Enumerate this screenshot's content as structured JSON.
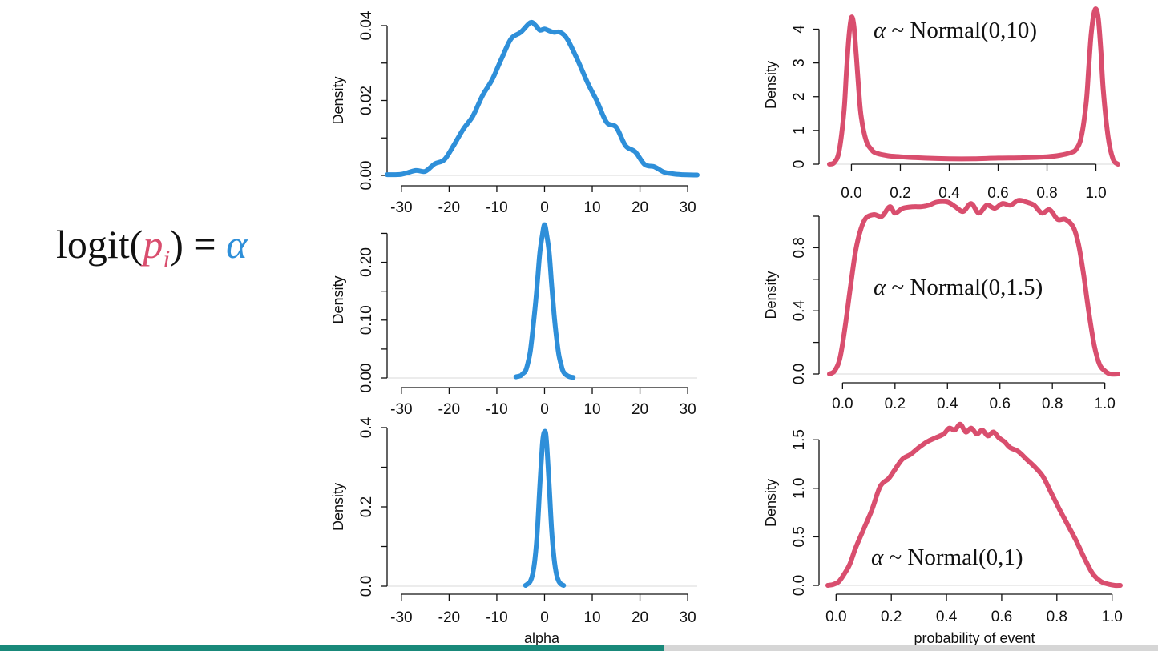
{
  "equation": {
    "text": "logit(",
    "p": "p",
    "sub": "i",
    "close": ") = ",
    "alpha": "α"
  },
  "colors": {
    "alpha_curve": "#2e8fd9",
    "prob_curve": "#d94e6e",
    "progress_fill": "#19897a",
    "progress_track": "#d6d6d6"
  },
  "progress": {
    "fraction": 0.573
  },
  "chart_data": [
    {
      "type": "line",
      "panel": "alpha-prior-sd10",
      "xlabel": "",
      "ylabel": "Density",
      "xlim": [
        -33,
        32
      ],
      "ylim": [
        0,
        0.04
      ],
      "xticks": [
        "-30",
        "-20",
        "-10",
        "0",
        "10",
        "20",
        "30"
      ],
      "xtick_values": [
        -30,
        -20,
        -10,
        0,
        10,
        20,
        30
      ],
      "yticks": [
        "0.00",
        "0.02",
        "0.04"
      ],
      "ytick_values": [
        0,
        0.02,
        0.04
      ],
      "minor_yticks": [
        0.01,
        0.03
      ],
      "color": "#2e8fd9",
      "x": [
        -33,
        -30,
        -27,
        -25,
        -23,
        -21,
        -19,
        -17,
        -15,
        -13,
        -11,
        -9,
        -7,
        -5,
        -3,
        -2,
        -1,
        0,
        1,
        2,
        3,
        4,
        5,
        7,
        9,
        11,
        13,
        15,
        17,
        19,
        21,
        23,
        25,
        27,
        29,
        32
      ],
      "y": [
        0.0002,
        0.0003,
        0.0013,
        0.0011,
        0.0031,
        0.0042,
        0.0081,
        0.0124,
        0.0159,
        0.0213,
        0.0255,
        0.0312,
        0.0365,
        0.0382,
        0.0408,
        0.0402,
        0.0388,
        0.0391,
        0.0386,
        0.0382,
        0.0383,
        0.0376,
        0.0359,
        0.0306,
        0.0248,
        0.0198,
        0.0142,
        0.0129,
        0.0079,
        0.0063,
        0.0029,
        0.0023,
        0.0009,
        0.0004,
        0.0002,
        0.0001
      ]
    },
    {
      "type": "line",
      "panel": "alpha-prior-sd1.5",
      "xlabel": "",
      "ylabel": "Density",
      "xlim": [
        -33,
        32
      ],
      "ylim": [
        0,
        0.27
      ],
      "xticks": [
        "-30",
        "-20",
        "-10",
        "0",
        "10",
        "20",
        "30"
      ],
      "xtick_values": [
        -30,
        -20,
        -10,
        0,
        10,
        20,
        30
      ],
      "yticks": [
        "0.00",
        "0.10",
        "0.20"
      ],
      "ytick_values": [
        0,
        0.1,
        0.2
      ],
      "minor_yticks": [
        0.05,
        0.15,
        0.25
      ],
      "color": "#2e8fd9",
      "x": [
        -6,
        -5,
        -4.5,
        -4,
        -3.5,
        -3,
        -2.5,
        -2,
        -1.5,
        -1,
        -0.5,
        0,
        0.5,
        1,
        1.5,
        2,
        2.5,
        3,
        3.5,
        4,
        5,
        6
      ],
      "y": [
        0.002,
        0.004,
        0.008,
        0.012,
        0.025,
        0.045,
        0.08,
        0.12,
        0.165,
        0.215,
        0.245,
        0.265,
        0.245,
        0.215,
        0.16,
        0.11,
        0.07,
        0.04,
        0.022,
        0.01,
        0.003,
        0.001
      ]
    },
    {
      "type": "line",
      "panel": "alpha-prior-sd1",
      "xlabel": "alpha",
      "ylabel": "Density",
      "xlim": [
        -33,
        32
      ],
      "ylim": [
        0,
        0.4
      ],
      "xticks": [
        "-30",
        "-20",
        "-10",
        "0",
        "10",
        "20",
        "30"
      ],
      "xtick_values": [
        -30,
        -20,
        -10,
        0,
        10,
        20,
        30
      ],
      "yticks": [
        "0.0",
        "0.2",
        "0.4"
      ],
      "ytick_values": [
        0,
        0.2,
        0.4
      ],
      "minor_yticks": [
        0.1,
        0.3
      ],
      "color": "#2e8fd9",
      "x": [
        -4,
        -3.5,
        -3,
        -2.5,
        -2,
        -1.5,
        -1,
        -0.5,
        -0.25,
        0,
        0.25,
        0.5,
        1,
        1.5,
        2,
        2.5,
        3,
        3.5,
        4
      ],
      "y": [
        0.002,
        0.006,
        0.012,
        0.03,
        0.07,
        0.14,
        0.25,
        0.35,
        0.38,
        0.39,
        0.385,
        0.35,
        0.25,
        0.14,
        0.07,
        0.03,
        0.012,
        0.005,
        0.002
      ]
    },
    {
      "type": "line",
      "panel": "prob-prior-sd10",
      "xlabel": "",
      "ylabel": "Density",
      "annotation": "α ~ Normal(0,10)",
      "annotation_alpha": "α",
      "annotation_rest": " ~ Normal(0,10)",
      "xlim": [
        -0.09,
        1.09
      ],
      "ylim": [
        0,
        4.7
      ],
      "xticks": [
        "0.0",
        "0.2",
        "0.4",
        "0.6",
        "0.8",
        "1.0"
      ],
      "xtick_values": [
        0,
        0.2,
        0.4,
        0.6,
        0.8,
        1.0
      ],
      "yticks": [
        "0",
        "1",
        "2",
        "3",
        "4"
      ],
      "ytick_values": [
        0,
        1,
        2,
        3,
        4
      ],
      "color": "#d94e6e",
      "x": [
        -0.09,
        -0.07,
        -0.05,
        -0.03,
        -0.02,
        -0.01,
        0.0,
        0.01,
        0.02,
        0.03,
        0.04,
        0.06,
        0.08,
        0.1,
        0.15,
        0.2,
        0.3,
        0.4,
        0.5,
        0.6,
        0.7,
        0.8,
        0.85,
        0.9,
        0.92,
        0.94,
        0.96,
        0.97,
        0.98,
        0.99,
        1.0,
        1.01,
        1.02,
        1.03,
        1.05,
        1.07,
        1.09
      ],
      "y": [
        0.0,
        0.05,
        0.4,
        1.6,
        2.8,
        3.8,
        4.35,
        4.1,
        3.2,
        2.2,
        1.4,
        0.7,
        0.45,
        0.33,
        0.25,
        0.22,
        0.18,
        0.16,
        0.16,
        0.18,
        0.19,
        0.22,
        0.26,
        0.35,
        0.45,
        0.8,
        1.8,
        2.8,
        3.8,
        4.4,
        4.6,
        4.3,
        3.4,
        2.2,
        0.8,
        0.15,
        0.0
      ]
    },
    {
      "type": "line",
      "panel": "prob-prior-sd1.5",
      "xlabel": "",
      "ylabel": "Density",
      "annotation": "α ~ Normal(0,1.5)",
      "annotation_alpha": "α",
      "annotation_rest": " ~ Normal(0,1.5)",
      "xlim": [
        -0.05,
        1.05
      ],
      "ylim": [
        0,
        1.0
      ],
      "xticks": [
        "0.0",
        "0.2",
        "0.4",
        "0.6",
        "0.8",
        "1.0"
      ],
      "xtick_values": [
        0,
        0.2,
        0.4,
        0.6,
        0.8,
        1.0
      ],
      "yticks": [
        "0.0",
        "0.4",
        "0.8"
      ],
      "ytick_values": [
        0,
        0.4,
        0.8
      ],
      "minor_yticks": [
        0.2,
        0.6,
        1.0
      ],
      "color": "#d94e6e",
      "x": [
        -0.05,
        -0.03,
        -0.01,
        0.01,
        0.03,
        0.05,
        0.07,
        0.09,
        0.12,
        0.15,
        0.18,
        0.2,
        0.23,
        0.27,
        0.3,
        0.33,
        0.36,
        0.4,
        0.43,
        0.46,
        0.49,
        0.52,
        0.55,
        0.58,
        0.61,
        0.64,
        0.67,
        0.7,
        0.73,
        0.76,
        0.79,
        0.82,
        0.85,
        0.88,
        0.9,
        0.92,
        0.94,
        0.96,
        0.98,
        1.0,
        1.02,
        1.05
      ],
      "y": [
        0.0,
        0.02,
        0.1,
        0.3,
        0.55,
        0.78,
        0.92,
        0.99,
        1.01,
        1.0,
        1.06,
        1.02,
        1.05,
        1.06,
        1.06,
        1.07,
        1.09,
        1.09,
        1.06,
        1.03,
        1.08,
        1.02,
        1.07,
        1.05,
        1.08,
        1.07,
        1.1,
        1.09,
        1.07,
        1.02,
        1.04,
        0.98,
        0.98,
        0.93,
        0.82,
        0.62,
        0.38,
        0.18,
        0.06,
        0.02,
        0.0,
        0.0
      ]
    },
    {
      "type": "line",
      "panel": "prob-prior-sd1",
      "xlabel": "probability of event",
      "ylabel": "Density",
      "annotation": "α ~ Normal(0,1)",
      "annotation_alpha": "α",
      "annotation_rest": " ~ Normal(0,1)",
      "xlim": [
        -0.03,
        1.03
      ],
      "ylim": [
        0,
        1.7
      ],
      "xticks": [
        "0.0",
        "0.2",
        "0.4",
        "0.6",
        "0.8",
        "1.0"
      ],
      "xtick_values": [
        0,
        0.2,
        0.4,
        0.6,
        0.8,
        1.0
      ],
      "yticks": [
        "0.0",
        "0.5",
        "1.0",
        "1.5"
      ],
      "ytick_values": [
        0,
        0.5,
        1.0,
        1.5
      ],
      "color": "#d94e6e",
      "x": [
        -0.03,
        -0.01,
        0.01,
        0.03,
        0.05,
        0.07,
        0.1,
        0.13,
        0.16,
        0.19,
        0.21,
        0.24,
        0.27,
        0.3,
        0.33,
        0.36,
        0.39,
        0.41,
        0.43,
        0.45,
        0.47,
        0.49,
        0.51,
        0.53,
        0.55,
        0.57,
        0.59,
        0.61,
        0.63,
        0.66,
        0.69,
        0.72,
        0.75,
        0.78,
        0.81,
        0.84,
        0.87,
        0.9,
        0.93,
        0.96,
        0.99,
        1.01,
        1.03
      ],
      "y": [
        0.0,
        0.01,
        0.04,
        0.12,
        0.22,
        0.38,
        0.58,
        0.78,
        1.02,
        1.1,
        1.18,
        1.3,
        1.35,
        1.42,
        1.48,
        1.52,
        1.56,
        1.62,
        1.6,
        1.66,
        1.58,
        1.62,
        1.56,
        1.6,
        1.54,
        1.58,
        1.52,
        1.48,
        1.42,
        1.38,
        1.3,
        1.22,
        1.12,
        0.95,
        0.78,
        0.62,
        0.46,
        0.28,
        0.12,
        0.04,
        0.01,
        0.0,
        0.0
      ]
    }
  ]
}
